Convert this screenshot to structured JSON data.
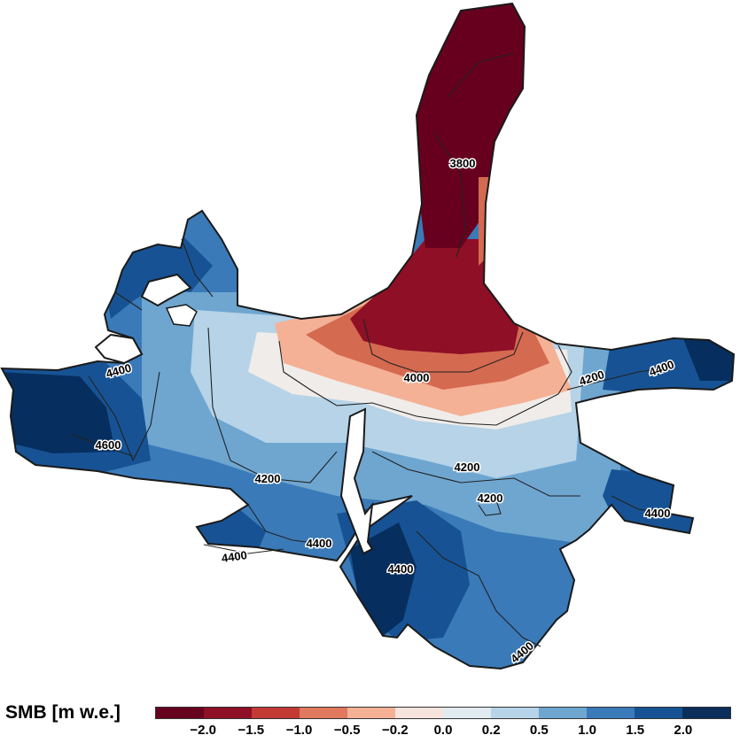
{
  "map": {
    "contour_labels": [
      "3800",
      "4000",
      "4200",
      "4200",
      "4200",
      "4200",
      "4400",
      "4400",
      "4400",
      "4400",
      "4400",
      "4400",
      "4400",
      "4600"
    ],
    "zone_colors": {
      "tongue": "#67001f",
      "tongue_mid": "#8e0f26",
      "confluence_warm": "#d46a50",
      "confluence_light": "#f4b195",
      "neutral": "#f0ece9",
      "light_blue": "#b6d3e7",
      "mid_blue": "#6ea6d0",
      "blue": "#3a7ab8",
      "deep_blue": "#175394",
      "darkest_blue": "#062e5e"
    }
  },
  "legend": {
    "title": "SMB [m w.e.]",
    "colors": [
      "#67001f",
      "#8e0f26",
      "#c23a33",
      "#e0795e",
      "#f4b195",
      "#f7e4dc",
      "#e1eaf1",
      "#b6d3e7",
      "#6ea6d0",
      "#3a7ab8",
      "#175394",
      "#0b2e5a"
    ],
    "ticks": [
      "−2.0",
      "−1.5",
      "−1.0",
      "−0.5",
      "−0.2",
      "0.0",
      "0.2",
      "0.5",
      "1.0",
      "1.5",
      "2.0"
    ]
  }
}
